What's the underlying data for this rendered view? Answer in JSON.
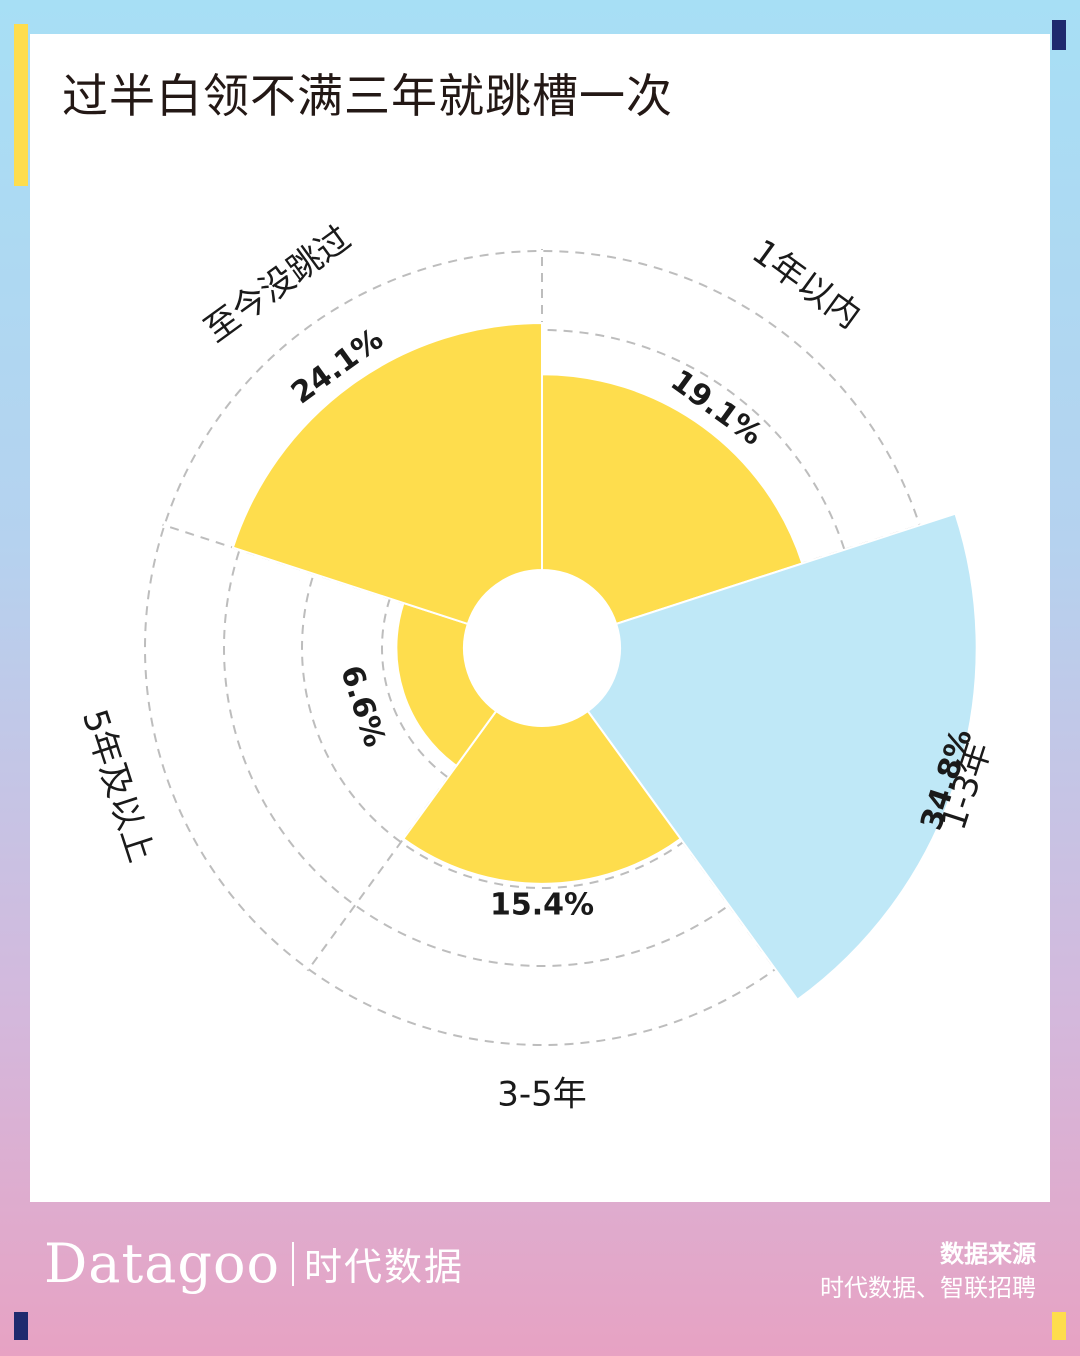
{
  "title": "过半白领不满三年就跳槽一次",
  "chart_data": {
    "type": "nightingale-rose",
    "title": "过半白领不满三年就跳槽一次",
    "categories": [
      "1年以内",
      "1-3年",
      "3-5年",
      "5年及以上",
      "至今没跳过"
    ],
    "values": [
      19.1,
      34.8,
      15.4,
      6.6,
      24.1
    ],
    "value_labels": [
      "19.1%",
      "34.8%",
      "15.4%",
      "6.6%",
      "24.1%"
    ],
    "highlight_category": "1-3年",
    "grid": true
  },
  "colors": {
    "default_sector": "#fedd4d",
    "highlight_sector": "#bfe8f7",
    "grid": "#bdbdbd",
    "text": "#1a1a1a",
    "frame_top": "#a7dff5",
    "frame_bottom": "#e7a2c3",
    "accent_yellow": "#fedd4d",
    "accent_navy": "#1f2a6e"
  },
  "footer": {
    "brand_name": "Datagoo",
    "brand_cn": "时代数据",
    "source_label": "数据来源",
    "source_value": "时代数据、智联招聘"
  }
}
